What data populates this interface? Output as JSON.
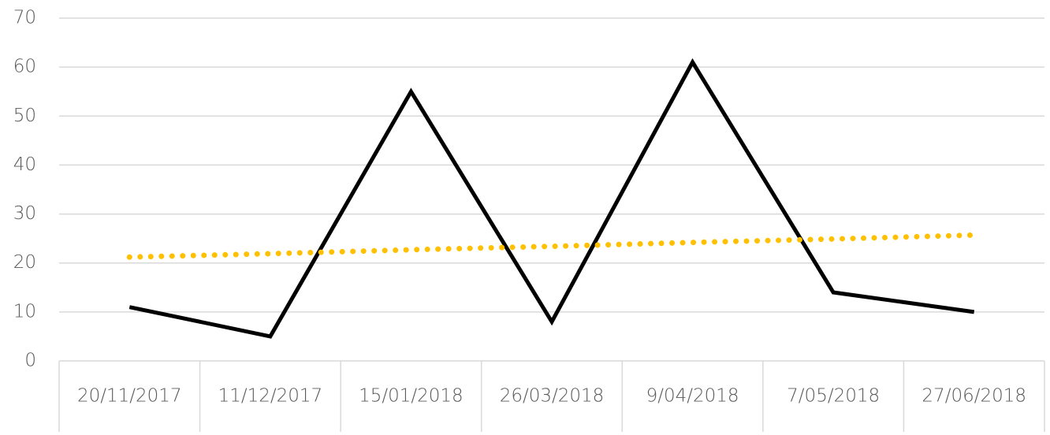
{
  "chart_data": {
    "type": "line",
    "categories": [
      "20/11/2017",
      "11/12/2017",
      "15/01/2018",
      "26/03/2018",
      "9/04/2018",
      "7/05/2018",
      "27/06/2018"
    ],
    "series": [
      {
        "color": "#000000",
        "style": "solid",
        "values": [
          11,
          5,
          55,
          8,
          61,
          14,
          10
        ]
      },
      {
        "color": "#ffc000",
        "style": "dotted",
        "values": [
          21.2,
          21.9,
          22.7,
          23.4,
          24.2,
          24.9,
          25.7
        ]
      }
    ],
    "ylim": [
      0,
      70
    ],
    "yticks": [
      0,
      10,
      20,
      30,
      40,
      50,
      60,
      70
    ],
    "grid": true
  }
}
